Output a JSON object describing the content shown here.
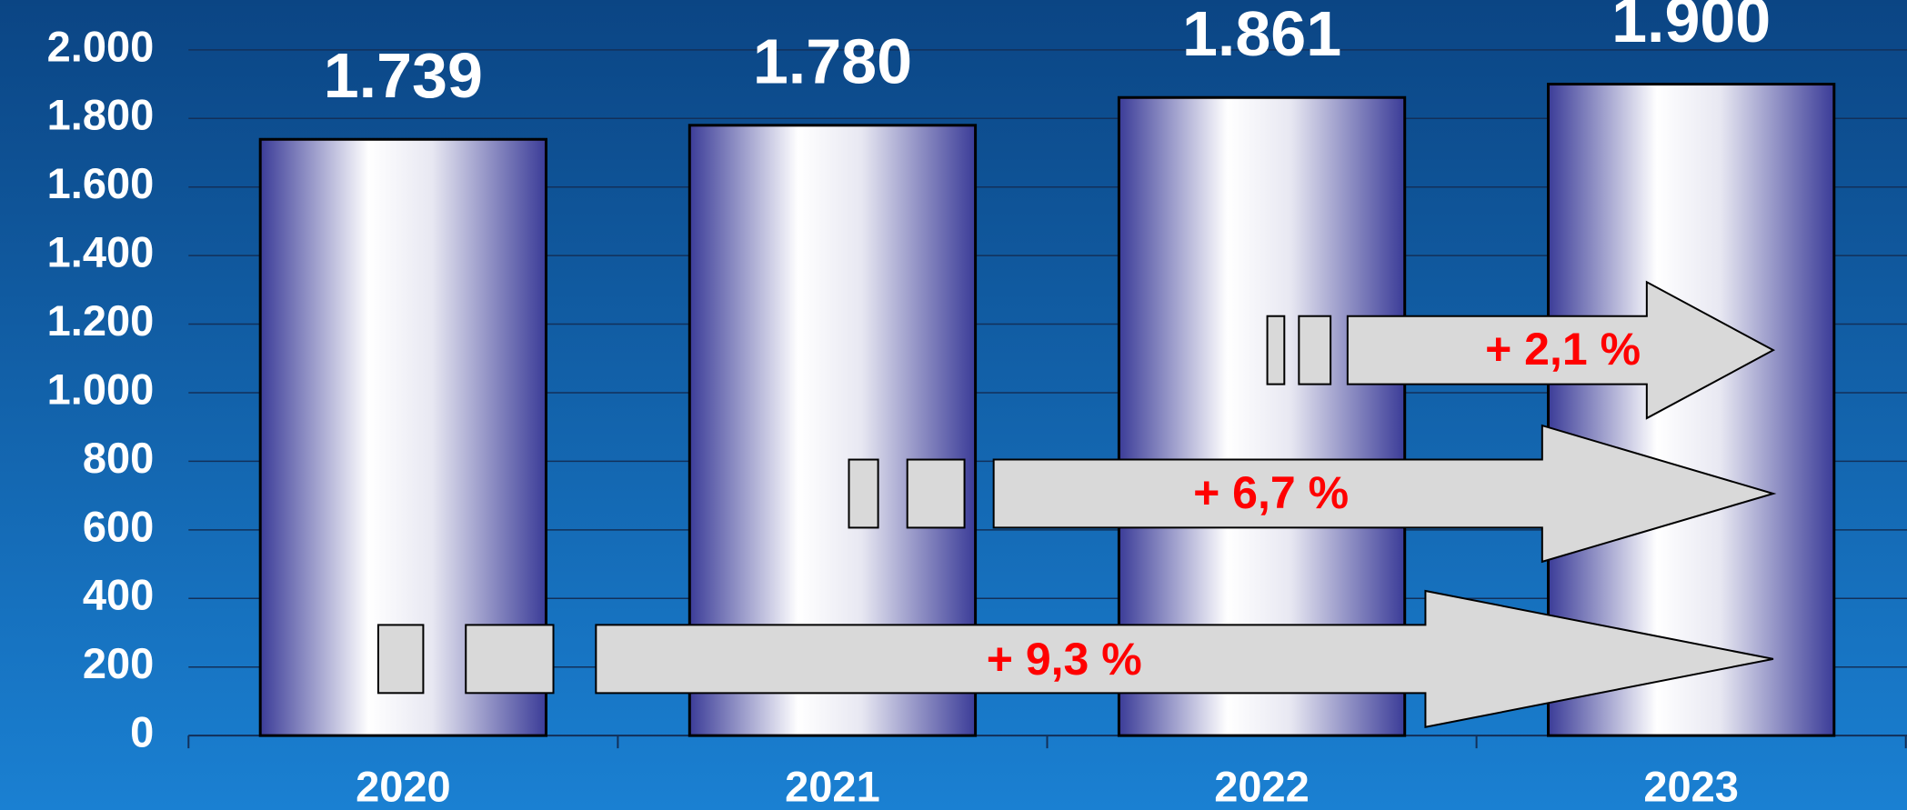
{
  "chart_data": {
    "type": "bar",
    "categories": [
      "2020",
      "2021",
      "2022",
      "2023"
    ],
    "values": [
      1739,
      1780,
      1861,
      1900
    ],
    "value_labels": [
      "1.739",
      "1.780",
      "1.861",
      "1.900"
    ],
    "ylim": [
      0,
      2000
    ],
    "yticks": [
      0,
      200,
      400,
      600,
      800,
      {
        "value": 1000,
        "label": "1.000"
      },
      {
        "value": 1200,
        "label": "1.200"
      },
      {
        "value": 1400,
        "label": "1.400"
      },
      {
        "value": 1600,
        "label": "1.600"
      },
      {
        "value": 1800,
        "label": "1.800"
      },
      {
        "value": 2000,
        "label": "2.000"
      }
    ],
    "grid": true,
    "annotations": [
      "+ 9,3 %",
      "+ 6,7 %",
      "+ 2,1 %"
    ]
  }
}
